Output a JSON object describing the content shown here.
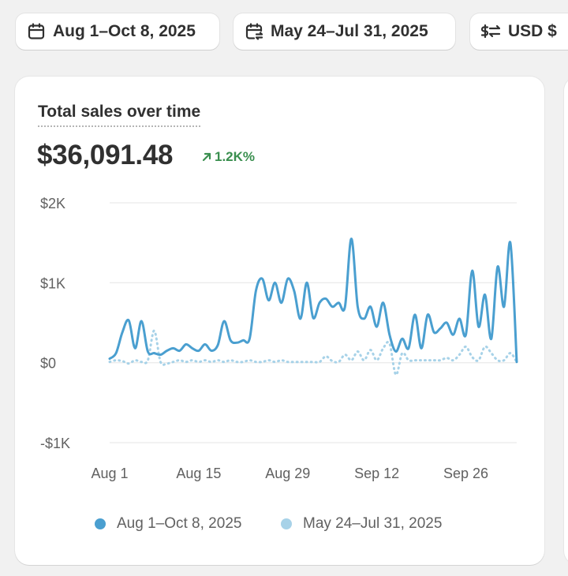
{
  "filters": {
    "current_range": "Aug 1–Oct 8, 2025",
    "compare_range": "May 24–Jul 31, 2025",
    "currency": "USD $"
  },
  "card": {
    "title": "Total sales over time",
    "total": "$36,091.48",
    "change": "1.2K%"
  },
  "colors": {
    "current": "#4a9fd0",
    "compare": "#a7d2e8",
    "positive": "#3a8f4f"
  },
  "icons": {
    "current_range": "calendar-icon",
    "compare_range": "calendar-compare-icon",
    "currency": "currency-swap-icon",
    "change": "arrow-up-right-icon"
  },
  "legend": {
    "current": "Aug 1–Oct 8, 2025",
    "compare": "May 24–Jul 31, 2025"
  },
  "chart_data": {
    "type": "line",
    "ylim": [
      -1000,
      2000
    ],
    "yticks": [
      2000,
      1000,
      0,
      -1000
    ],
    "yticklabels": [
      "$2K",
      "$1K",
      "$0",
      "-$1K"
    ],
    "xticks": [
      0,
      14,
      28,
      42,
      56
    ],
    "xticklabels": [
      "Aug 1",
      "Aug 15",
      "Aug 29",
      "Sep 12",
      "Sep 26"
    ],
    "grid": true,
    "legend_position": "bottom",
    "series": [
      {
        "name": "Aug 1–Oct 8, 2025",
        "style": "solid",
        "values": [
          50,
          120,
          380,
          530,
          180,
          520,
          140,
          120,
          100,
          150,
          180,
          150,
          230,
          180,
          150,
          230,
          150,
          220,
          520,
          280,
          250,
          280,
          300,
          900,
          1050,
          780,
          1000,
          750,
          1050,
          900,
          550,
          1000,
          560,
          750,
          800,
          700,
          750,
          700,
          1550,
          700,
          550,
          700,
          450,
          750,
          350,
          140,
          300,
          180,
          600,
          180,
          600,
          380,
          430,
          500,
          350,
          550,
          350,
          1150,
          450,
          850,
          300,
          1200,
          700,
          1500,
          10
        ]
      },
      {
        "name": "May 24–Jul 31, 2025",
        "style": "dotted",
        "values": [
          10,
          30,
          20,
          -10,
          30,
          10,
          30,
          400,
          10,
          -10,
          10,
          30,
          10,
          30,
          10,
          30,
          10,
          30,
          10,
          30,
          10,
          10,
          30,
          10,
          10,
          30,
          10,
          30,
          10,
          10,
          10,
          10,
          10,
          10,
          80,
          20,
          10,
          100,
          30,
          140,
          30,
          160,
          30,
          180,
          240,
          -150,
          120,
          30,
          30,
          30,
          30,
          30,
          30,
          60,
          30,
          100,
          200,
          70,
          30,
          200,
          120,
          30,
          30,
          120,
          10
        ]
      }
    ]
  }
}
